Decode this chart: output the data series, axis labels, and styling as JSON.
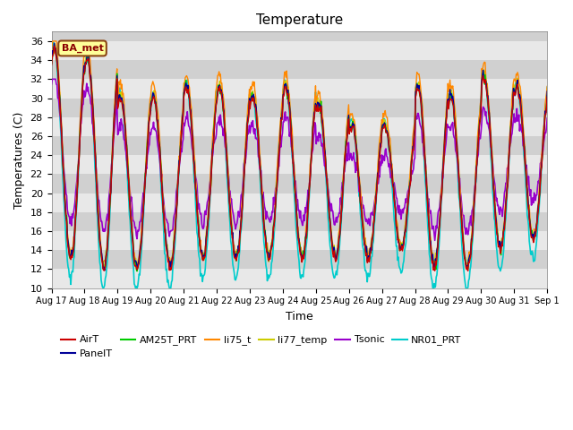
{
  "title": "Temperature",
  "ylabel": "Temperatures (C)",
  "xlabel": "Time",
  "ylim": [
    10,
    37
  ],
  "yticks": [
    10,
    12,
    14,
    16,
    18,
    20,
    22,
    24,
    26,
    28,
    30,
    32,
    34,
    36
  ],
  "n_days": 15,
  "pts_per_day": 48,
  "series": {
    "AirT": {
      "color": "#cc0000",
      "lw": 1.0,
      "zorder": 8
    },
    "PanelT": {
      "color": "#000099",
      "lw": 1.0,
      "zorder": 7
    },
    "AM25T_PRT": {
      "color": "#00cc00",
      "lw": 1.0,
      "zorder": 6
    },
    "li75_t": {
      "color": "#ff8800",
      "lw": 1.0,
      "zorder": 5
    },
    "li77_temp": {
      "color": "#cccc00",
      "lw": 1.0,
      "zorder": 4
    },
    "Tsonic": {
      "color": "#9900cc",
      "lw": 1.2,
      "zorder": 3
    },
    "NR01_PRT": {
      "color": "#00cccc",
      "lw": 1.2,
      "zorder": 2
    }
  },
  "annotation_text": "BA_met",
  "plot_bg": "#dcdcdc",
  "stripe_light": "#e8e8e8",
  "stripe_dark": "#d0d0d0"
}
